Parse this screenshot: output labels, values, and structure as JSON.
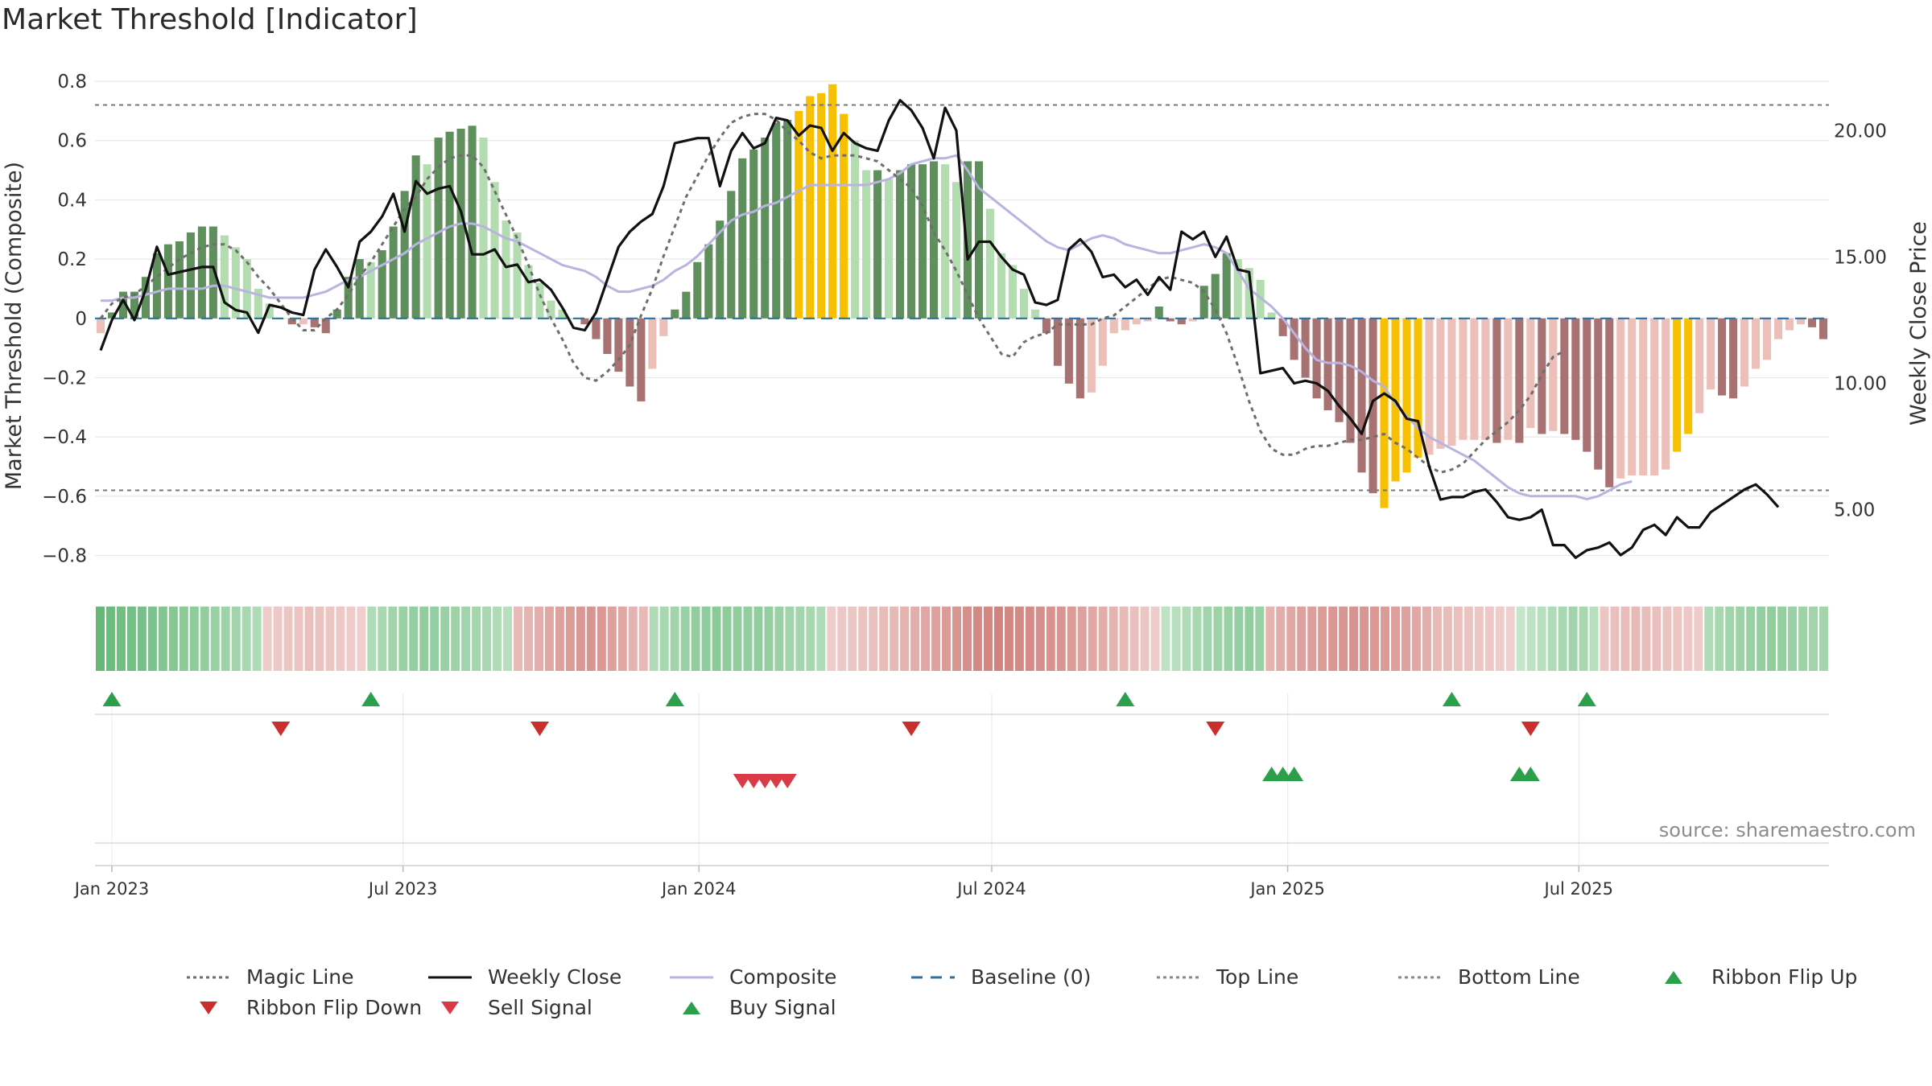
{
  "title": "Market Threshold [Indicator]",
  "source": "source: sharemaestro.com",
  "colors": {
    "pos_dark": "#5f8f5c",
    "pos_light": "#b3dcb0",
    "neg_dark": "#a87272",
    "neg_light": "#ecbfb9",
    "extreme": "#f7c000",
    "weekly_close": "#111111",
    "composite": "#b9b3e0",
    "magic": "#6e6e6e",
    "baseline": "#2f6f9f",
    "threshold": "#777777",
    "buy": "#2aa04a",
    "sell": "#d93a46",
    "ribbon_flip_down": "#c9302c"
  },
  "chart_data": {
    "type": "bar",
    "x_start": "2022-12-25",
    "x_step_days": 7,
    "left_axis": {
      "label": "Market Threshold (Composite)",
      "range": [
        -0.88,
        0.83
      ],
      "ticks": [
        0.8,
        0.6,
        0.4,
        0.2,
        0,
        -0.2,
        -0.4,
        -0.6,
        -0.8
      ],
      "tick_labels": [
        "0.8",
        "0.6",
        "0.4",
        "0.2",
        "0",
        "−0.2",
        "−0.4",
        "−0.6",
        "−0.8"
      ]
    },
    "right_axis": {
      "label": "Weekly Close Price",
      "range": [
        2.25,
        22.3
      ],
      "ticks": [
        20,
        15,
        10,
        5
      ],
      "tick_labels": [
        "20.00",
        "15.00",
        "10.00",
        "5.00"
      ]
    },
    "x_ticks": [
      {
        "date": "2023-01-01",
        "label": "Jan 2023"
      },
      {
        "date": "2023-07-01",
        "label": "Jul 2023"
      },
      {
        "date": "2024-01-01",
        "label": "Jan 2024"
      },
      {
        "date": "2024-07-01",
        "label": "Jul 2024"
      },
      {
        "date": "2025-01-01",
        "label": "Jan 2025"
      },
      {
        "date": "2025-07-01",
        "label": "Jul 2025"
      }
    ],
    "top_line": 0.72,
    "bottom_line": -0.58,
    "series": [
      {
        "name": "Composite Bars",
        "kind": "bar",
        "values": [
          -0.05,
          0.02,
          0.09,
          0.09,
          0.14,
          0.22,
          0.25,
          0.26,
          0.29,
          0.31,
          0.31,
          0.28,
          0.24,
          0.2,
          0.1,
          0.05,
          0.0,
          -0.02,
          -0.02,
          -0.03,
          -0.05,
          0.03,
          0.14,
          0.2,
          0.19,
          0.23,
          0.31,
          0.43,
          0.55,
          0.52,
          0.61,
          0.63,
          0.64,
          0.65,
          0.61,
          0.46,
          0.33,
          0.29,
          0.18,
          0.12,
          0.06,
          0.03,
          0.0,
          -0.02,
          -0.07,
          -0.12,
          -0.18,
          -0.23,
          -0.28,
          -0.17,
          -0.06,
          0.03,
          0.09,
          0.19,
          0.25,
          0.33,
          0.43,
          0.54,
          0.57,
          0.61,
          0.66,
          0.67,
          0.7,
          0.75,
          0.76,
          0.79,
          0.69,
          0.6,
          0.5,
          0.5,
          0.47,
          0.5,
          0.52,
          0.52,
          0.53,
          0.52,
          0.46,
          0.53,
          0.53,
          0.37,
          0.22,
          0.18,
          0.1,
          0.03,
          -0.05,
          -0.16,
          -0.22,
          -0.27,
          -0.25,
          -0.16,
          -0.05,
          -0.04,
          -0.02,
          -0.01,
          0.04,
          -0.01,
          -0.02,
          -0.01,
          0.11,
          0.15,
          0.22,
          0.2,
          0.17,
          0.13,
          0.02,
          -0.06,
          -0.14,
          -0.2,
          -0.27,
          -0.31,
          -0.35,
          -0.42,
          -0.52,
          -0.59,
          -0.64,
          -0.55,
          -0.52,
          -0.47,
          -0.46,
          -0.44,
          -0.43,
          -0.41,
          -0.41,
          -0.41,
          -0.42,
          -0.41,
          -0.42,
          -0.37,
          -0.39,
          -0.38,
          -0.39,
          -0.41,
          -0.45,
          -0.51,
          -0.57,
          -0.54,
          -0.53,
          -0.53,
          -0.53,
          -0.51,
          -0.45,
          -0.39,
          -0.32,
          -0.24,
          -0.26,
          -0.27,
          -0.23,
          -0.17,
          -0.14,
          -0.07,
          -0.04,
          -0.02,
          -0.03,
          -0.07
        ]
      },
      {
        "name": "Weekly Close",
        "kind": "line",
        "axis": "right",
        "values": [
          11.3,
          12.5,
          13.3,
          12.5,
          13.7,
          15.4,
          14.3,
          14.4,
          14.5,
          14.6,
          14.6,
          13.2,
          12.9,
          12.8,
          12.0,
          13.1,
          13.0,
          12.8,
          12.7,
          14.5,
          15.3,
          14.6,
          13.8,
          15.6,
          16.0,
          16.6,
          17.5,
          16.0,
          18.0,
          17.5,
          17.7,
          17.8,
          16.8,
          15.1,
          15.1,
          15.3,
          14.6,
          14.7,
          14.0,
          14.1,
          13.7,
          13.0,
          12.2,
          12.1,
          12.8,
          14.1,
          15.4,
          16.0,
          16.4,
          16.7,
          17.8,
          19.5,
          19.6,
          19.7,
          19.7,
          17.8,
          19.2,
          19.9,
          19.3,
          19.5,
          20.5,
          20.4,
          19.8,
          20.2,
          20.1,
          19.2,
          19.9,
          19.5,
          19.3,
          19.2,
          20.4,
          21.2,
          20.8,
          20.1,
          18.9,
          20.9,
          20.0,
          14.9,
          15.6,
          15.6,
          15.0,
          14.5,
          14.3,
          13.2,
          13.1,
          13.3,
          15.3,
          15.7,
          15.2,
          14.2,
          14.3,
          13.8,
          14.1,
          13.5,
          14.2,
          13.7,
          16.0,
          15.7,
          16.0,
          15.0,
          15.8,
          14.5,
          14.4,
          10.4,
          10.5,
          10.6,
          10.0,
          10.1,
          10.0,
          9.7,
          9.1,
          8.6,
          8.0,
          9.3,
          9.6,
          9.3,
          8.6,
          8.5,
          6.7,
          5.4,
          5.5,
          5.5,
          5.7,
          5.8,
          5.3,
          4.7,
          4.6,
          4.7,
          5.0,
          3.6,
          3.6,
          3.1,
          3.4,
          3.5,
          3.7,
          3.2,
          3.5,
          4.2,
          4.4,
          4.0,
          4.7,
          4.3,
          4.3,
          4.9,
          5.2,
          5.5,
          5.8,
          6.0,
          5.6,
          5.1
        ]
      },
      {
        "name": "Composite",
        "kind": "line",
        "values": [
          0.06,
          0.06,
          0.07,
          0.07,
          0.08,
          0.09,
          0.1,
          0.1,
          0.1,
          0.1,
          0.11,
          0.11,
          0.1,
          0.09,
          0.08,
          0.07,
          0.07,
          0.07,
          0.07,
          0.08,
          0.09,
          0.11,
          0.13,
          0.14,
          0.16,
          0.18,
          0.2,
          0.22,
          0.25,
          0.27,
          0.29,
          0.31,
          0.32,
          0.32,
          0.31,
          0.29,
          0.27,
          0.26,
          0.24,
          0.22,
          0.2,
          0.18,
          0.17,
          0.16,
          0.14,
          0.11,
          0.09,
          0.09,
          0.1,
          0.11,
          0.13,
          0.16,
          0.18,
          0.21,
          0.25,
          0.29,
          0.33,
          0.35,
          0.36,
          0.38,
          0.39,
          0.41,
          0.43,
          0.45,
          0.45,
          0.45,
          0.45,
          0.45,
          0.45,
          0.46,
          0.47,
          0.49,
          0.52,
          0.53,
          0.54,
          0.54,
          0.55,
          0.5,
          0.44,
          0.41,
          0.38,
          0.35,
          0.32,
          0.29,
          0.26,
          0.24,
          0.23,
          0.25,
          0.27,
          0.28,
          0.27,
          0.25,
          0.24,
          0.23,
          0.22,
          0.22,
          0.23,
          0.24,
          0.25,
          0.24,
          0.22,
          0.16,
          0.1,
          0.07,
          0.04,
          0.0,
          -0.05,
          -0.1,
          -0.14,
          -0.15,
          -0.15,
          -0.16,
          -0.18,
          -0.21,
          -0.23,
          -0.29,
          -0.33,
          -0.37,
          -0.4,
          -0.42,
          -0.44,
          -0.46,
          -0.48,
          -0.51,
          -0.54,
          -0.57,
          -0.59,
          -0.6,
          -0.6,
          -0.6,
          -0.6,
          -0.6,
          -0.61,
          -0.6,
          -0.58,
          -0.56,
          -0.55
        ]
      },
      {
        "name": "Magic Line",
        "kind": "line",
        "values": [
          0.0,
          0.05,
          0.07,
          0.08,
          0.11,
          0.14,
          0.17,
          0.2,
          0.22,
          0.24,
          0.25,
          0.25,
          0.23,
          0.19,
          0.14,
          0.1,
          0.05,
          0.0,
          -0.04,
          -0.04,
          0.0,
          0.03,
          0.08,
          0.14,
          0.19,
          0.25,
          0.31,
          0.37,
          0.41,
          0.47,
          0.51,
          0.54,
          0.55,
          0.55,
          0.51,
          0.43,
          0.35,
          0.27,
          0.18,
          0.08,
          0.0,
          -0.07,
          -0.15,
          -0.2,
          -0.21,
          -0.18,
          -0.14,
          -0.09,
          0.01,
          0.1,
          0.21,
          0.31,
          0.41,
          0.48,
          0.55,
          0.61,
          0.66,
          0.68,
          0.69,
          0.69,
          0.67,
          0.63,
          0.6,
          0.56,
          0.54,
          0.55,
          0.55,
          0.55,
          0.54,
          0.53,
          0.5,
          0.47,
          0.44,
          0.38,
          0.29,
          0.23,
          0.16,
          0.08,
          0.0,
          -0.06,
          -0.12,
          -0.13,
          -0.08,
          -0.06,
          -0.05,
          -0.02,
          -0.02,
          -0.02,
          -0.02,
          0.0,
          0.01,
          0.04,
          0.07,
          0.1,
          0.13,
          0.14,
          0.13,
          0.12,
          0.09,
          0.03,
          -0.05,
          -0.16,
          -0.28,
          -0.38,
          -0.44,
          -0.46,
          -0.46,
          -0.44,
          -0.43,
          -0.43,
          -0.42,
          -0.41,
          -0.41,
          -0.4,
          -0.39,
          -0.42,
          -0.44,
          -0.47,
          -0.5,
          -0.52,
          -0.51,
          -0.49,
          -0.45,
          -0.41,
          -0.38,
          -0.35,
          -0.31,
          -0.26,
          -0.19,
          -0.13,
          -0.11
        ]
      },
      {
        "name": "Baseline (0)",
        "kind": "hline",
        "value": 0
      },
      {
        "name": "Top Line",
        "kind": "hline",
        "value": 0.72
      },
      {
        "name": "Bottom Line",
        "kind": "hline",
        "value": -0.58
      }
    ],
    "extreme_weeks": [
      62,
      63,
      64,
      65,
      66,
      114,
      115,
      116,
      117,
      140,
      141
    ],
    "ribbon": [
      0.8,
      0.75,
      0.72,
      0.7,
      0.68,
      0.65,
      0.6,
      0.58,
      0.55,
      0.52,
      0.5,
      0.45,
      0.42,
      0.4,
      0.35,
      0.3,
      -0.15,
      -0.18,
      -0.2,
      -0.22,
      -0.25,
      -0.23,
      -0.2,
      -0.18,
      -0.15,
      -0.12,
      0.3,
      0.35,
      0.4,
      0.45,
      0.48,
      0.5,
      0.48,
      0.45,
      0.42,
      0.4,
      0.38,
      0.35,
      0.3,
      0.25,
      -0.3,
      -0.35,
      -0.4,
      -0.45,
      -0.5,
      -0.55,
      -0.58,
      -0.6,
      -0.58,
      -0.5,
      -0.45,
      -0.35,
      -0.3,
      0.3,
      0.35,
      0.4,
      0.45,
      0.5,
      0.52,
      0.55,
      0.52,
      0.5,
      0.5,
      0.5,
      0.48,
      0.45,
      0.4,
      0.38,
      0.35,
      0.3,
      -0.15,
      -0.18,
      -0.2,
      -0.22,
      -0.25,
      -0.28,
      -0.3,
      -0.35,
      -0.4,
      -0.45,
      -0.5,
      -0.55,
      -0.6,
      -0.65,
      -0.7,
      -0.72,
      -0.75,
      -0.72,
      -0.7,
      -0.68,
      -0.65,
      -0.62,
      -0.6,
      -0.55,
      -0.5,
      -0.45,
      -0.4,
      -0.35,
      -0.3,
      -0.25,
      -0.2,
      -0.15,
      0.2,
      0.25,
      0.3,
      0.35,
      0.4,
      0.42,
      0.45,
      0.48,
      0.5,
      0.45,
      -0.35,
      -0.4,
      -0.45,
      -0.5,
      -0.52,
      -0.55,
      -0.58,
      -0.6,
      -0.62,
      -0.6,
      -0.58,
      -0.55,
      -0.52,
      -0.5,
      -0.45,
      -0.4,
      -0.3,
      -0.28,
      -0.25,
      -0.22,
      -0.2,
      -0.18,
      -0.15,
      -0.12,
      0.15,
      0.2,
      0.25,
      0.3,
      0.35,
      0.4,
      0.35,
      0.25,
      -0.2,
      -0.25,
      -0.28,
      -0.3,
      -0.28,
      -0.25,
      -0.22,
      -0.2,
      -0.18,
      -0.15,
      0.3,
      0.35,
      0.4,
      0.42,
      0.45,
      0.48,
      0.5,
      0.48,
      0.45,
      0.42,
      0.4,
      0.38
    ],
    "ribbon_flip_up": [
      "2023-01-01",
      "2023-06-11",
      "2023-12-17",
      "2024-09-22",
      "2025-04-13",
      "2025-07-06"
    ],
    "ribbon_flip_down": [
      "2023-04-16",
      "2023-09-24",
      "2024-05-12",
      "2024-11-17",
      "2025-06-01"
    ],
    "sell_signal": [
      "2024-01-28",
      "2024-02-04",
      "2024-02-11",
      "2024-02-18",
      "2024-02-25"
    ],
    "buy_signal": [
      "2024-12-22",
      "2024-12-29",
      "2025-01-05",
      "2025-05-25",
      "2025-06-01"
    ]
  },
  "legend": [
    {
      "label": "Magic Line",
      "symbol": "dotted",
      "color": "#6e6e6e"
    },
    {
      "label": "Weekly Close",
      "symbol": "solid",
      "color": "#111111"
    },
    {
      "label": "Composite",
      "symbol": "solid",
      "color": "#b9b3e0"
    },
    {
      "label": "Baseline (0)",
      "symbol": "dashed",
      "color": "#2f6f9f"
    },
    {
      "label": "Top Line",
      "symbol": "dotted",
      "color": "#888888"
    },
    {
      "label": "Bottom Line",
      "symbol": "dotted",
      "color": "#888888"
    },
    {
      "label": "Ribbon Flip Up",
      "symbol": "triangle-up",
      "color": "#2aa04a"
    },
    {
      "label": "Ribbon Flip Down",
      "symbol": "triangle-down",
      "color": "#c9302c"
    },
    {
      "label": "Sell Signal",
      "symbol": "triangle-down",
      "color": "#d93a46"
    },
    {
      "label": "Buy Signal",
      "symbol": "triangle-up",
      "color": "#2aa04a"
    }
  ]
}
